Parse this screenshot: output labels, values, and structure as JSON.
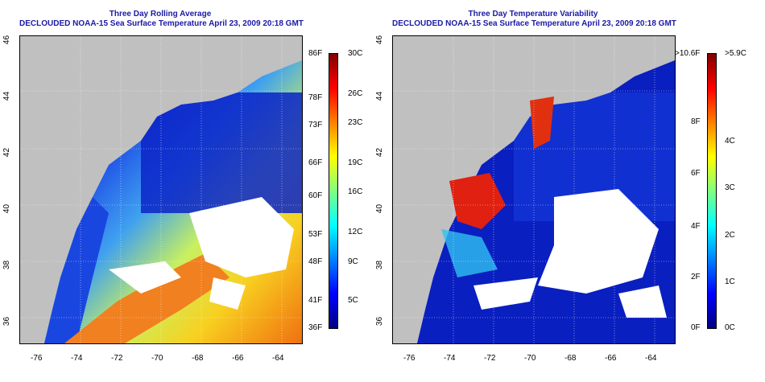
{
  "left_panel": {
    "title_line1": "Three Day Rolling Average",
    "title_line2": "DECLOUDED NOAA-15 Sea Surface Temperature April 23, 2009 20:18 GMT",
    "lat_labels": [
      "46",
      "44",
      "42",
      "40",
      "38",
      "36"
    ],
    "lon_labels": [
      "-76",
      "-74",
      "-72",
      "-70",
      "-68",
      "-66",
      "-64"
    ],
    "colorbar_f": [
      "86F",
      "78F",
      "73F",
      "66F",
      "60F",
      "53F",
      "48F",
      "41F",
      "36F"
    ],
    "colorbar_c": [
      "30C",
      "26C",
      "23C",
      "19C",
      "16C",
      "12C",
      "9C",
      "5C"
    ]
  },
  "right_panel": {
    "title_line1": "Three Day Temperature Variability",
    "title_line2": "DECLOUDED NOAA-15 Sea Surface Temperature April 23, 2009 20:18 GMT",
    "lat_labels": [
      "46",
      "44",
      "42",
      "40",
      "38",
      "36"
    ],
    "lon_labels": [
      "-76",
      "-74",
      "-72",
      "-70",
      "-68",
      "-66",
      "-64"
    ],
    "colorbar_f": [
      ">10.6F",
      "8F",
      "6F",
      "4F",
      "2F",
      "0F"
    ],
    "colorbar_c": [
      ">5.9C",
      "4C",
      "3C",
      "2C",
      "1C",
      "0C"
    ]
  },
  "colors": {
    "land": "#c0c0c0",
    "title": "#1a1aa6",
    "cloud": "#ffffff"
  }
}
